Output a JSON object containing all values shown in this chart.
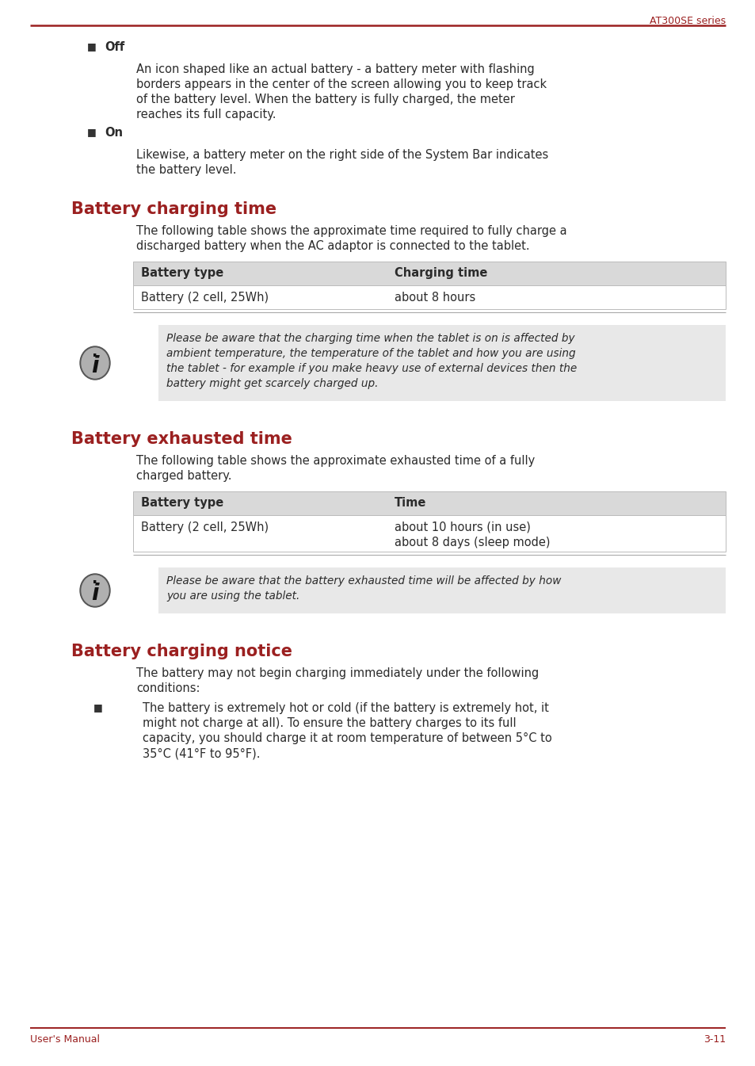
{
  "bg_color": "#ffffff",
  "text_color": "#2b2b2b",
  "red_color": "#9b2020",
  "header_bg": "#d9d9d9",
  "info_bg": "#e8e8e8",
  "page_header": "AT300SE series",
  "footer_left": "User's Manual",
  "footer_right": "3-11",
  "off_label": "Off",
  "off_text_lines": [
    "An icon shaped like an actual battery - a battery meter with flashing",
    "borders appears in the center of the screen allowing you to keep track",
    "of the battery level. When the battery is fully charged, the meter",
    "reaches its full capacity."
  ],
  "on_label": "On",
  "on_text_lines": [
    "Likewise, a battery meter on the right side of the System Bar indicates",
    "the battery level."
  ],
  "section1_title": "Battery charging time",
  "section1_intro_lines": [
    "The following table shows the approximate time required to fully charge a",
    "discharged battery when the AC adaptor is connected to the tablet."
  ],
  "table1_header": [
    "Battery type",
    "Charging time"
  ],
  "table1_row": [
    "Battery (2 cell, 25Wh)",
    "about 8 hours"
  ],
  "info1_text_lines": [
    "Please be aware that the charging time when the tablet is on is affected by",
    "ambient temperature, the temperature of the tablet and how you are using",
    "the tablet - for example if you make heavy use of external devices then the",
    "battery might get scarcely charged up."
  ],
  "section2_title": "Battery exhausted time",
  "section2_intro_lines": [
    "The following table shows the approximate exhausted time of a fully",
    "charged battery."
  ],
  "table2_header": [
    "Battery type",
    "Time"
  ],
  "table2_row1_col1": "Battery (2 cell, 25Wh)",
  "table2_row1_col2": "about 10 hours (in use)",
  "table2_row2_col2": "about 8 days (sleep mode)",
  "info2_text_lines": [
    "Please be aware that the battery exhausted time will be affected by how",
    "you are using the tablet."
  ],
  "section3_title": "Battery charging notice",
  "section3_intro_lines": [
    "The battery may not begin charging immediately under the following",
    "conditions:"
  ],
  "bullet1_text_lines": [
    "The battery is extremely hot or cold (if the battery is extremely hot, it",
    "might not charge at all). To ensure the battery charges to its full",
    "capacity, you should charge it at room temperature of between 5°C to",
    "35°C (41°F to 95°F)."
  ]
}
